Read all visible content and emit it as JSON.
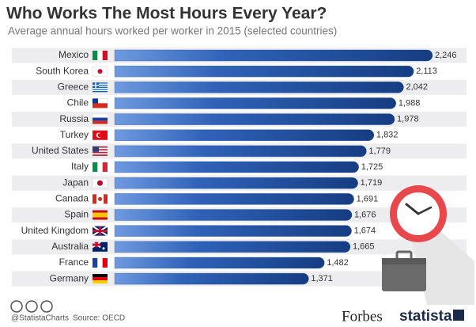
{
  "chart_data": {
    "type": "bar",
    "title": "Who Works The Most Hours Every Year?",
    "subtitle": "Average annual hours worked per worker in 2015 (selected countries)",
    "categories": [
      "Mexico",
      "South Korea",
      "Greece",
      "Chile",
      "Russia",
      "Turkey",
      "United States",
      "Italy",
      "Japan",
      "Canada",
      "Spain",
      "United Kingdom",
      "Australia",
      "France",
      "Germany"
    ],
    "values": [
      2246,
      2113,
      2042,
      1988,
      1978,
      1832,
      1779,
      1725,
      1719,
      1691,
      1676,
      1674,
      1665,
      1482,
      1371
    ],
    "value_labels": [
      "2,246",
      "2,113",
      "2,042",
      "1,988",
      "1,978",
      "1,832",
      "1,779",
      "1,725",
      "1,719",
      "1,691",
      "1,676",
      "1,674",
      "1,665",
      "1,482",
      "1,371"
    ],
    "color": "#1f4f9c"
  },
  "footer": {
    "handle": "@StatistaCharts",
    "source": "Source: OECD",
    "brand_left": "Forbes",
    "brand_right": "statista"
  }
}
